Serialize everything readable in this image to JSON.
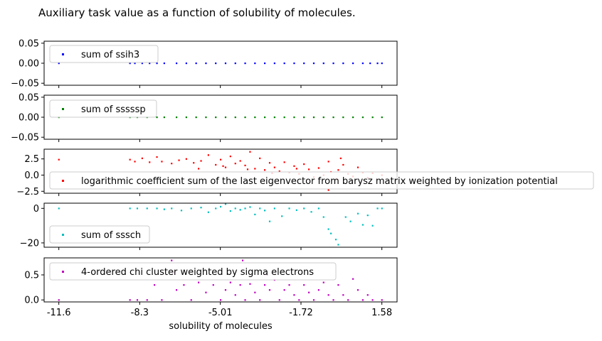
{
  "figure": {
    "title": "Auxiliary task value as a function of solubility of molecules."
  },
  "chart_data": [
    {
      "type": "scatter",
      "series": [
        {
          "name": "sum of ssih3",
          "color": "#0000ff"
        }
      ],
      "x_range": [
        -12.2,
        2.2
      ],
      "ylim": [
        -0.055,
        0.055
      ],
      "yticks": [
        0.05,
        0.0,
        -0.05
      ],
      "ytick_labels": [
        "0.05",
        "0.00",
        "−0.05"
      ],
      "xticks": [
        -11.6,
        -8.3,
        -5.01,
        -1.72,
        1.58
      ],
      "points": [
        [
          -11.6,
          0.0
        ],
        [
          -8.7,
          0.0
        ],
        [
          -8.5,
          0.0
        ],
        [
          -8.2,
          0.0
        ],
        [
          -7.9,
          0.0
        ],
        [
          -7.6,
          0.0
        ],
        [
          -7.3,
          0.0
        ],
        [
          -6.8,
          0.0
        ],
        [
          -6.4,
          0.0
        ],
        [
          -6.0,
          0.0
        ],
        [
          -5.6,
          0.0
        ],
        [
          -5.2,
          0.0
        ],
        [
          -4.8,
          0.0
        ],
        [
          -4.4,
          0.0
        ],
        [
          -4.0,
          0.0
        ],
        [
          -3.6,
          0.0
        ],
        [
          -3.2,
          0.0
        ],
        [
          -2.8,
          0.0
        ],
        [
          -2.4,
          0.0
        ],
        [
          -2.0,
          0.0
        ],
        [
          -1.6,
          0.0
        ],
        [
          -1.2,
          0.0
        ],
        [
          -0.8,
          0.0
        ],
        [
          -0.4,
          0.0
        ],
        [
          0.0,
          0.0
        ],
        [
          0.4,
          0.0
        ],
        [
          0.8,
          0.0
        ],
        [
          1.1,
          0.0
        ],
        [
          1.4,
          0.0
        ],
        [
          1.58,
          0.0
        ]
      ],
      "legend": "upper left"
    },
    {
      "type": "scatter",
      "series": [
        {
          "name": "sum of sssssp",
          "color": "#008000"
        }
      ],
      "x_range": [
        -12.2,
        2.2
      ],
      "ylim": [
        -0.055,
        0.055
      ],
      "yticks": [
        0.05,
        0.0,
        -0.05
      ],
      "ytick_labels": [
        "0.05",
        "0.00",
        "−0.05"
      ],
      "points": [
        [
          -11.6,
          0.0
        ],
        [
          -8.7,
          0.0
        ],
        [
          -8.4,
          0.0
        ],
        [
          -8.0,
          0.0
        ],
        [
          -7.6,
          0.0
        ],
        [
          -7.3,
          0.0
        ],
        [
          -6.8,
          0.0
        ],
        [
          -6.4,
          0.0
        ],
        [
          -6.0,
          0.0
        ],
        [
          -5.6,
          0.0
        ],
        [
          -5.2,
          0.0
        ],
        [
          -4.8,
          0.0
        ],
        [
          -4.4,
          0.0
        ],
        [
          -4.0,
          0.0
        ],
        [
          -3.6,
          0.0
        ],
        [
          -3.2,
          0.0
        ],
        [
          -2.8,
          0.0
        ],
        [
          -2.4,
          0.0
        ],
        [
          -2.0,
          0.0
        ],
        [
          -1.6,
          0.0
        ],
        [
          -1.2,
          0.0
        ],
        [
          -0.8,
          0.0
        ],
        [
          -0.4,
          0.0
        ],
        [
          0.0,
          0.0
        ],
        [
          0.4,
          0.0
        ],
        [
          0.8,
          0.0
        ],
        [
          1.2,
          0.0
        ],
        [
          1.58,
          0.0
        ]
      ],
      "legend": "upper left"
    },
    {
      "type": "scatter",
      "series": [
        {
          "name": "logarithmic coefficient sum of the last eigenvector from barysz matrix weighted by ionization potential",
          "color": "#ff0000"
        }
      ],
      "x_range": [
        -12.2,
        2.2
      ],
      "ylim": [
        -2.8,
        4.0
      ],
      "yticks": [
        2.5,
        0.0,
        -2.5
      ],
      "ytick_labels": [
        "2.5",
        "0.0",
        "−2.5"
      ],
      "points": [
        [
          -11.6,
          2.4
        ],
        [
          -8.7,
          2.4
        ],
        [
          -8.5,
          2.1
        ],
        [
          -8.2,
          2.6
        ],
        [
          -7.9,
          2.0
        ],
        [
          -7.6,
          2.8
        ],
        [
          -7.4,
          2.1
        ],
        [
          -7.0,
          1.8
        ],
        [
          -6.7,
          2.3
        ],
        [
          -6.4,
          2.5
        ],
        [
          -6.1,
          1.9
        ],
        [
          -5.8,
          2.2
        ],
        [
          -5.5,
          3.1
        ],
        [
          -5.2,
          1.6
        ],
        [
          -5.0,
          2.4
        ],
        [
          -4.8,
          1.2
        ],
        [
          -4.6,
          2.9
        ],
        [
          -4.4,
          1.8
        ],
        [
          -4.2,
          2.2
        ],
        [
          -4.0,
          1.5
        ],
        [
          -3.8,
          3.6
        ],
        [
          -3.6,
          1.0
        ],
        [
          -3.4,
          2.6
        ],
        [
          -3.2,
          0.8
        ],
        [
          -3.0,
          1.9
        ],
        [
          -2.8,
          1.2
        ],
        [
          -2.6,
          0.6
        ],
        [
          -2.4,
          2.0
        ],
        [
          -2.2,
          0.4
        ],
        [
          -2.0,
          1.4
        ],
        [
          -1.8,
          0.2
        ],
        [
          -1.6,
          1.7
        ],
        [
          -1.4,
          0.9
        ],
        [
          -1.2,
          -0.3
        ],
        [
          -1.0,
          1.1
        ],
        [
          -0.8,
          0.0
        ],
        [
          -0.6,
          2.1
        ],
        [
          -0.5,
          0.5
        ],
        [
          -0.3,
          -0.6
        ],
        [
          -0.2,
          0.8
        ],
        [
          0.0,
          1.6
        ],
        [
          0.2,
          0.2
        ],
        [
          0.4,
          -0.2
        ],
        [
          0.6,
          1.2
        ],
        [
          0.8,
          0.4
        ],
        [
          1.0,
          -0.4
        ],
        [
          1.2,
          0.3
        ],
        [
          1.58,
          0.0
        ],
        [
          -0.6,
          -2.3
        ],
        [
          -1.9,
          1.0
        ],
        [
          -2.9,
          0.3
        ],
        [
          -3.9,
          0.9
        ],
        [
          -4.9,
          1.4
        ],
        [
          -5.9,
          1.0
        ],
        [
          -0.1,
          2.6
        ]
      ],
      "legend": "center left"
    },
    {
      "type": "scatter",
      "series": [
        {
          "name": "sum of sssch",
          "color": "#00bfbf"
        }
      ],
      "x_range": [
        -12.2,
        2.2
      ],
      "ylim": [
        -22.5,
        3.0
      ],
      "yticks": [
        0,
        -20
      ],
      "ytick_labels": [
        "0",
        "−20"
      ],
      "points": [
        [
          -11.6,
          0.0
        ],
        [
          -8.7,
          0.0
        ],
        [
          -8.4,
          0.0
        ],
        [
          -8.0,
          0.0
        ],
        [
          -7.6,
          0.0
        ],
        [
          -7.3,
          -0.5
        ],
        [
          -7.0,
          0.0
        ],
        [
          -6.6,
          -1.2
        ],
        [
          -6.2,
          0.0
        ],
        [
          -5.8,
          0.5
        ],
        [
          -5.5,
          -2.2
        ],
        [
          -5.2,
          0.0
        ],
        [
          -5.0,
          1.0
        ],
        [
          -4.8,
          2.5
        ],
        [
          -4.6,
          -1.5
        ],
        [
          -4.4,
          0.0
        ],
        [
          -4.2,
          -0.8
        ],
        [
          -4.0,
          0.0
        ],
        [
          -3.8,
          0.8
        ],
        [
          -3.6,
          -3.5
        ],
        [
          -3.4,
          0.0
        ],
        [
          -3.2,
          -1.2
        ],
        [
          -3.0,
          -7.5
        ],
        [
          -2.8,
          0.0
        ],
        [
          -2.5,
          -4.5
        ],
        [
          -2.2,
          0.0
        ],
        [
          -1.9,
          -1.0
        ],
        [
          -1.6,
          0.0
        ],
        [
          -1.3,
          -2.0
        ],
        [
          -1.0,
          0.0
        ],
        [
          -0.8,
          -5.0
        ],
        [
          -0.6,
          -12.0
        ],
        [
          -0.5,
          -14.5
        ],
        [
          -0.3,
          -18.0
        ],
        [
          -0.2,
          -21.0
        ],
        [
          0.1,
          -5.0
        ],
        [
          0.3,
          -7.5
        ],
        [
          0.6,
          -3.0
        ],
        [
          0.8,
          -9.5
        ],
        [
          1.0,
          -4.0
        ],
        [
          1.2,
          -10.0
        ],
        [
          1.4,
          0.0
        ],
        [
          1.58,
          0.0
        ]
      ],
      "legend": "lower left"
    },
    {
      "type": "scatter",
      "series": [
        {
          "name": "4-ordered chi cluster weighted by sigma electrons",
          "color": "#bf00bf"
        }
      ],
      "x_range": [
        -12.2,
        2.2
      ],
      "ylim": [
        -0.04,
        0.84
      ],
      "yticks": [
        0.5,
        0.0
      ],
      "ytick_labels": [
        "0.5",
        "0.0"
      ],
      "xticks": [
        -11.6,
        -8.3,
        -5.01,
        -1.72,
        1.58
      ],
      "xtick_labels": [
        "-11.6",
        "-8.3",
        "-5.01",
        "-1.72",
        "1.58"
      ],
      "xlabel": "solubility of molecules",
      "points": [
        [
          -11.6,
          0.0
        ],
        [
          -8.7,
          0.0
        ],
        [
          -8.4,
          0.0
        ],
        [
          -8.0,
          0.0
        ],
        [
          -7.7,
          0.3
        ],
        [
          -7.4,
          0.0
        ],
        [
          -7.0,
          0.79
        ],
        [
          -6.8,
          0.2
        ],
        [
          -6.5,
          0.3
        ],
        [
          -6.2,
          0.0
        ],
        [
          -5.9,
          0.35
        ],
        [
          -5.6,
          0.15
        ],
        [
          -5.3,
          0.3
        ],
        [
          -5.0,
          0.0
        ],
        [
          -4.8,
          0.2
        ],
        [
          -4.6,
          0.35
        ],
        [
          -4.4,
          0.1
        ],
        [
          -4.2,
          0.3
        ],
        [
          -4.0,
          0.0
        ],
        [
          -3.8,
          0.32
        ],
        [
          -3.6,
          0.15
        ],
        [
          -3.4,
          0.0
        ],
        [
          -3.2,
          0.3
        ],
        [
          -3.0,
          0.2
        ],
        [
          -2.8,
          0.4
        ],
        [
          -2.6,
          0.0
        ],
        [
          -2.4,
          0.2
        ],
        [
          -2.2,
          0.3
        ],
        [
          -2.0,
          0.1
        ],
        [
          -1.8,
          0.0
        ],
        [
          -1.6,
          0.3
        ],
        [
          -1.4,
          0.15
        ],
        [
          -1.2,
          0.0
        ],
        [
          -1.0,
          0.2
        ],
        [
          -0.8,
          0.35
        ],
        [
          -0.6,
          0.1
        ],
        [
          -0.4,
          0.0
        ],
        [
          -0.2,
          0.3
        ],
        [
          0.0,
          0.1
        ],
        [
          0.2,
          0.0
        ],
        [
          0.4,
          0.42
        ],
        [
          0.6,
          0.2
        ],
        [
          0.8,
          0.0
        ],
        [
          1.0,
          0.1
        ],
        [
          1.2,
          0.0
        ],
        [
          1.58,
          0.0
        ],
        [
          -4.1,
          0.79
        ],
        [
          -6.9,
          0.55
        ],
        [
          -3.1,
          0.5
        ]
      ],
      "legend": "upper left"
    }
  ]
}
